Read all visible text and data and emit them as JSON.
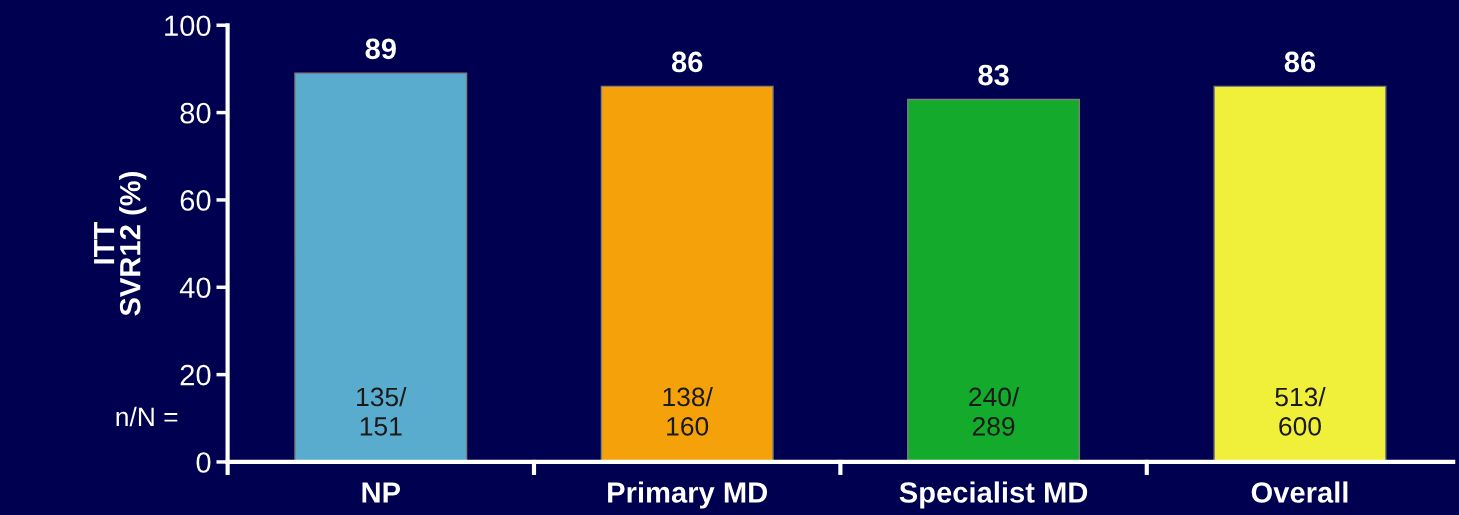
{
  "chart_data": {
    "type": "bar",
    "ylabel": "ITT\nSVR12 (%)",
    "categories": [
      "NP",
      "Primary MD",
      "Specialist MD",
      "Overall"
    ],
    "values": [
      89,
      86,
      83,
      86
    ],
    "colors": [
      "#5aaccf",
      "#f5a20a",
      "#14aa2c",
      "#f0f03a"
    ],
    "ylim": [
      0,
      100
    ],
    "yticks": [
      0,
      20,
      40,
      60,
      80,
      100
    ],
    "data_labels": true,
    "grid": false,
    "annotations": [
      "n/N =",
      "135/\n151",
      "138/\n160",
      "240/\n289",
      "513/\n600"
    ]
  }
}
